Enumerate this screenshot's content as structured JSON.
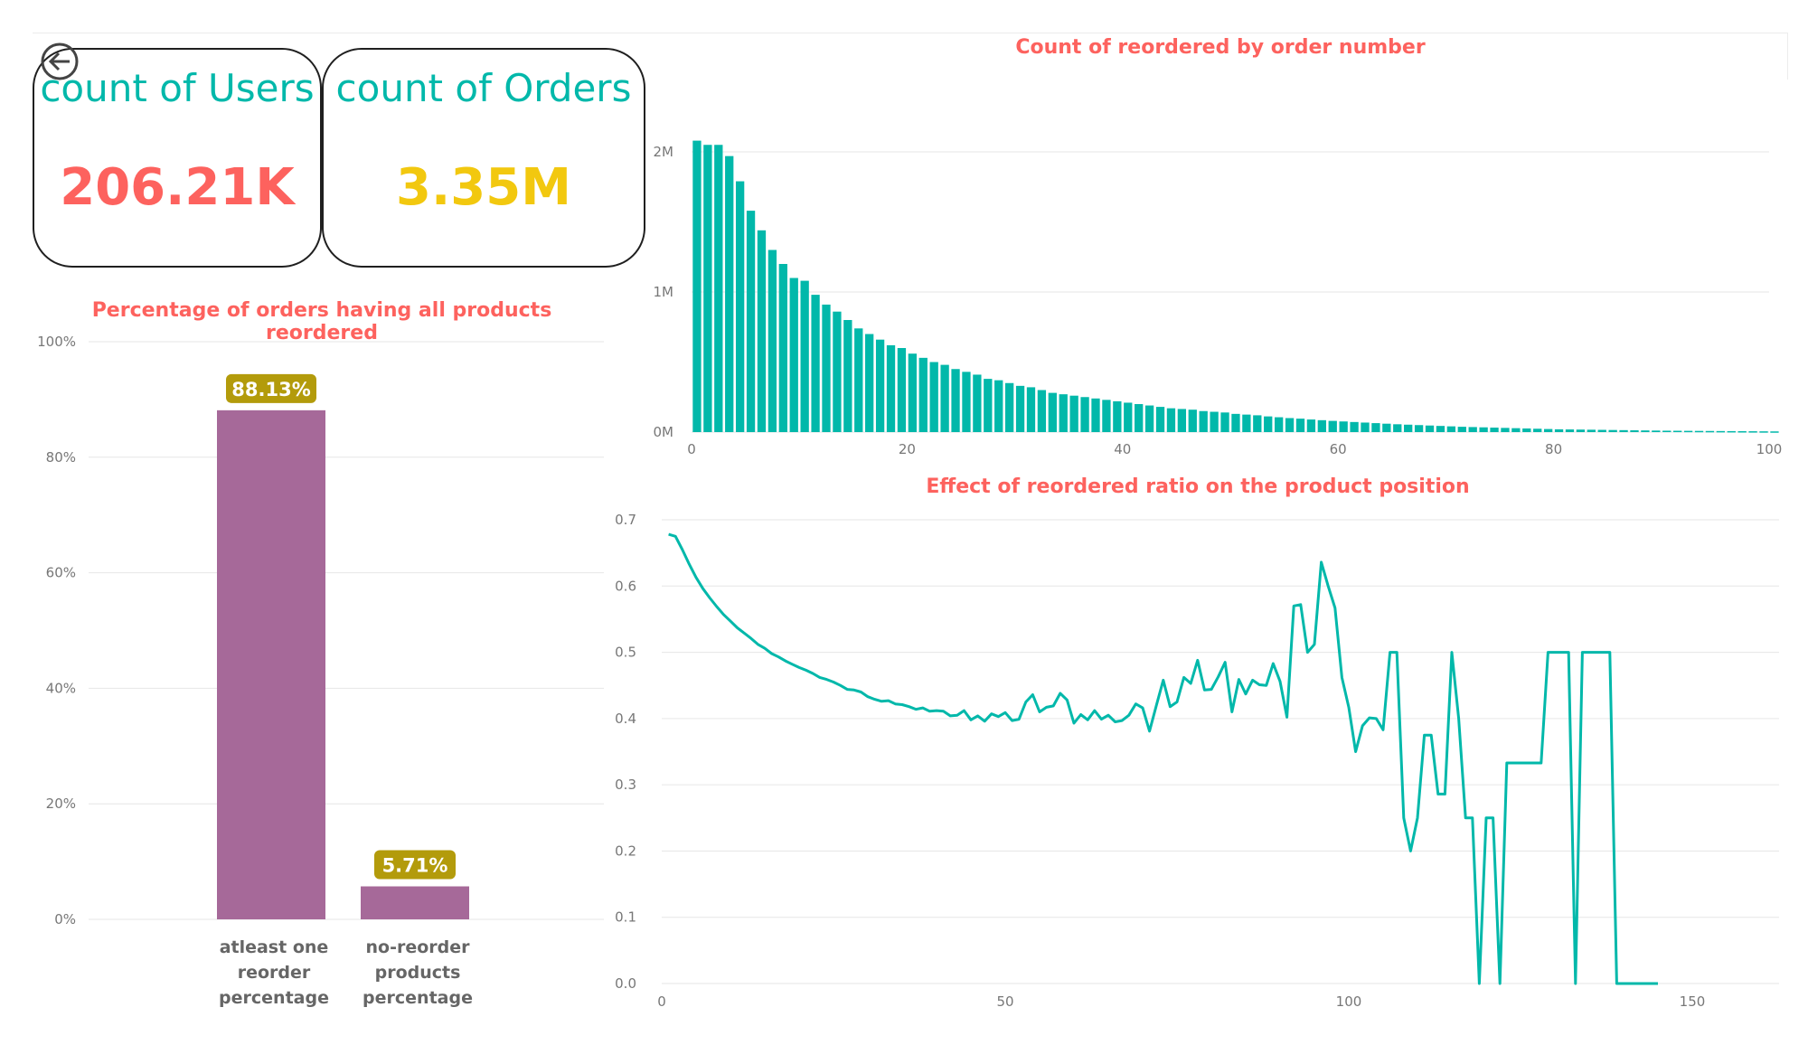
{
  "kpis": {
    "users": {
      "label": "count of Users",
      "value": "206.21K",
      "value_color": "#fd625e"
    },
    "orders": {
      "label": "count of Orders",
      "value": "3.35M",
      "value_color": "#f2c80f"
    }
  },
  "colors": {
    "title": "#fd625e",
    "teal": "#01b8aa",
    "purple": "#a66999",
    "badge": "#b39b0b",
    "axis_text": "#777777",
    "grid": "#e6e6e6"
  },
  "icons": {
    "back": "back-arrow-icon"
  },
  "chart_data": [
    {
      "type": "bar",
      "title": "Percentage of orders having all products reordered",
      "categories": [
        [
          "atleast one",
          "reorder",
          "percentage"
        ],
        [
          "no-reorder",
          "products",
          "percentage"
        ]
      ],
      "values": [
        88.13,
        5.71
      ],
      "data_labels": [
        "88.13%",
        "5.71%"
      ],
      "ylim": [
        0,
        100
      ],
      "yticks": [
        0,
        20,
        40,
        60,
        80,
        100
      ],
      "ytick_labels": [
        "0%",
        "20%",
        "40%",
        "60%",
        "80%",
        "100%"
      ],
      "grid": true,
      "color": "#a66999"
    },
    {
      "type": "bar",
      "title": "Count of reordered by order number",
      "x": [
        0,
        1,
        2,
        3,
        4,
        5,
        6,
        7,
        8,
        9,
        10,
        11,
        12,
        13,
        14,
        15,
        16,
        17,
        18,
        19,
        20,
        21,
        22,
        23,
        24,
        25,
        26,
        27,
        28,
        29,
        30,
        31,
        32,
        33,
        34,
        35,
        36,
        37,
        38,
        39,
        40,
        41,
        42,
        43,
        44,
        45,
        46,
        47,
        48,
        49,
        50,
        51,
        52,
        53,
        54,
        55,
        56,
        57,
        58,
        59,
        60,
        61,
        62,
        63,
        64,
        65,
        66,
        67,
        68,
        69,
        70,
        71,
        72,
        73,
        74,
        75,
        76,
        77,
        78,
        79,
        80,
        81,
        82,
        83,
        84,
        85,
        86,
        87,
        88,
        89,
        90,
        91,
        92,
        93,
        94,
        95,
        96,
        97,
        98,
        99,
        100
      ],
      "values": [
        2080000,
        2050000,
        2050000,
        1970000,
        1790000,
        1580000,
        1440000,
        1300000,
        1200000,
        1100000,
        1080000,
        980000,
        910000,
        860000,
        800000,
        740000,
        700000,
        660000,
        620000,
        600000,
        560000,
        530000,
        500000,
        480000,
        450000,
        430000,
        410000,
        380000,
        370000,
        350000,
        330000,
        320000,
        300000,
        280000,
        270000,
        260000,
        250000,
        240000,
        230000,
        220000,
        210000,
        200000,
        190000,
        180000,
        170000,
        165000,
        160000,
        150000,
        145000,
        140000,
        130000,
        125000,
        120000,
        112000,
        106000,
        100000,
        96000,
        90000,
        85000,
        80000,
        76000,
        72000,
        68000,
        64000,
        60000,
        56000,
        53000,
        50000,
        47000,
        44000,
        41000,
        38000,
        36000,
        34000,
        32000,
        30000,
        28000,
        26000,
        24000,
        22000,
        20000,
        19000,
        18000,
        17000,
        16000,
        15000,
        14000,
        13000,
        12000,
        11000,
        10000,
        9500,
        9000,
        8500,
        8000,
        7500,
        7000,
        6500,
        6000,
        5500,
        5000
      ],
      "xlim": [
        0,
        100
      ],
      "xticks": [
        0,
        20,
        40,
        60,
        80,
        100
      ],
      "ylim": [
        0,
        2000000
      ],
      "yticks": [
        0,
        1000000,
        2000000
      ],
      "ytick_labels": [
        "0M",
        "1M",
        "2M"
      ],
      "grid": true,
      "color": "#01b8aa"
    },
    {
      "type": "line",
      "title": "Effect of reordered ratio on the product position",
      "x": [
        1,
        2,
        3,
        4,
        5,
        6,
        7,
        8,
        9,
        10,
        11,
        12,
        13,
        14,
        15,
        16,
        17,
        18,
        19,
        20,
        21,
        22,
        23,
        24,
        25,
        26,
        27,
        28,
        29,
        30,
        31,
        32,
        33,
        34,
        35,
        36,
        37,
        38,
        39,
        40,
        41,
        42,
        43,
        44,
        45,
        46,
        47,
        48,
        49,
        50,
        51,
        52,
        53,
        54,
        55,
        56,
        57,
        58,
        59,
        60,
        61,
        62,
        63,
        64,
        65,
        66,
        67,
        68,
        69,
        70,
        71,
        72,
        73,
        74,
        75,
        76,
        77,
        78,
        79,
        80,
        81,
        82,
        83,
        84,
        85,
        86,
        87,
        88,
        89,
        90,
        91,
        92,
        93,
        94,
        95,
        96,
        97,
        98,
        99,
        100,
        101,
        102,
        103,
        104,
        105,
        106,
        107,
        108,
        109,
        110,
        111,
        112,
        113,
        114,
        115,
        116,
        117,
        118,
        119,
        120,
        121,
        122,
        123,
        124,
        125,
        126,
        127,
        128,
        129,
        130,
        131,
        132,
        133,
        134,
        135,
        136,
        137,
        138,
        139,
        140,
        141,
        142,
        143,
        144,
        145
      ],
      "values": [
        0.678,
        0.675,
        0.655,
        0.633,
        0.613,
        0.596,
        0.582,
        0.569,
        0.557,
        0.547,
        0.537,
        0.529,
        0.521,
        0.512,
        0.506,
        0.498,
        0.493,
        0.487,
        0.482,
        0.477,
        0.473,
        0.468,
        0.462,
        0.459,
        0.455,
        0.45,
        0.444,
        0.443,
        0.44,
        0.433,
        0.429,
        0.426,
        0.427,
        0.422,
        0.421,
        0.418,
        0.414,
        0.416,
        0.411,
        0.412,
        0.411,
        0.404,
        0.405,
        0.412,
        0.398,
        0.404,
        0.396,
        0.407,
        0.403,
        0.409,
        0.397,
        0.399,
        0.425,
        0.436,
        0.41,
        0.417,
        0.419,
        0.438,
        0.428,
        0.393,
        0.406,
        0.398,
        0.412,
        0.399,
        0.405,
        0.395,
        0.397,
        0.405,
        0.422,
        0.416,
        0.381,
        0.42,
        0.458,
        0.418,
        0.425,
        0.462,
        0.453,
        0.488,
        0.443,
        0.444,
        0.463,
        0.485,
        0.41,
        0.459,
        0.437,
        0.458,
        0.451,
        0.45,
        0.483,
        0.456,
        0.402,
        0.57,
        0.572,
        0.5,
        0.512,
        0.636,
        0.6,
        0.567,
        0.462,
        0.417,
        0.35,
        0.389,
        0.401,
        0.4,
        0.383,
        0.5,
        0.5,
        0.25,
        0.2,
        0.25,
        0.375,
        0.375,
        0.286,
        0.286,
        0.5,
        0.4,
        0.25,
        0.25,
        0.0,
        0.25,
        0.25,
        0.0,
        0.333,
        0.333,
        0.333,
        0.333,
        0.333,
        0.333,
        0.5,
        0.5,
        0.5,
        0.5,
        0.0,
        0.5,
        0.5,
        0.5,
        0.5,
        0.5,
        0.0,
        0.0,
        0.0,
        0.0,
        0.0,
        0.0,
        0.0
      ],
      "xlim": [
        0,
        150
      ],
      "xticks": [
        0,
        50,
        100,
        150
      ],
      "ylim": [
        0,
        0.7
      ],
      "yticks": [
        0,
        0.1,
        0.2,
        0.3,
        0.4,
        0.5,
        0.6,
        0.7
      ],
      "ytick_labels": [
        "0.0",
        "0.1",
        "0.2",
        "0.3",
        "0.4",
        "0.5",
        "0.6",
        "0.7"
      ],
      "grid": true,
      "color": "#01b8aa"
    }
  ]
}
